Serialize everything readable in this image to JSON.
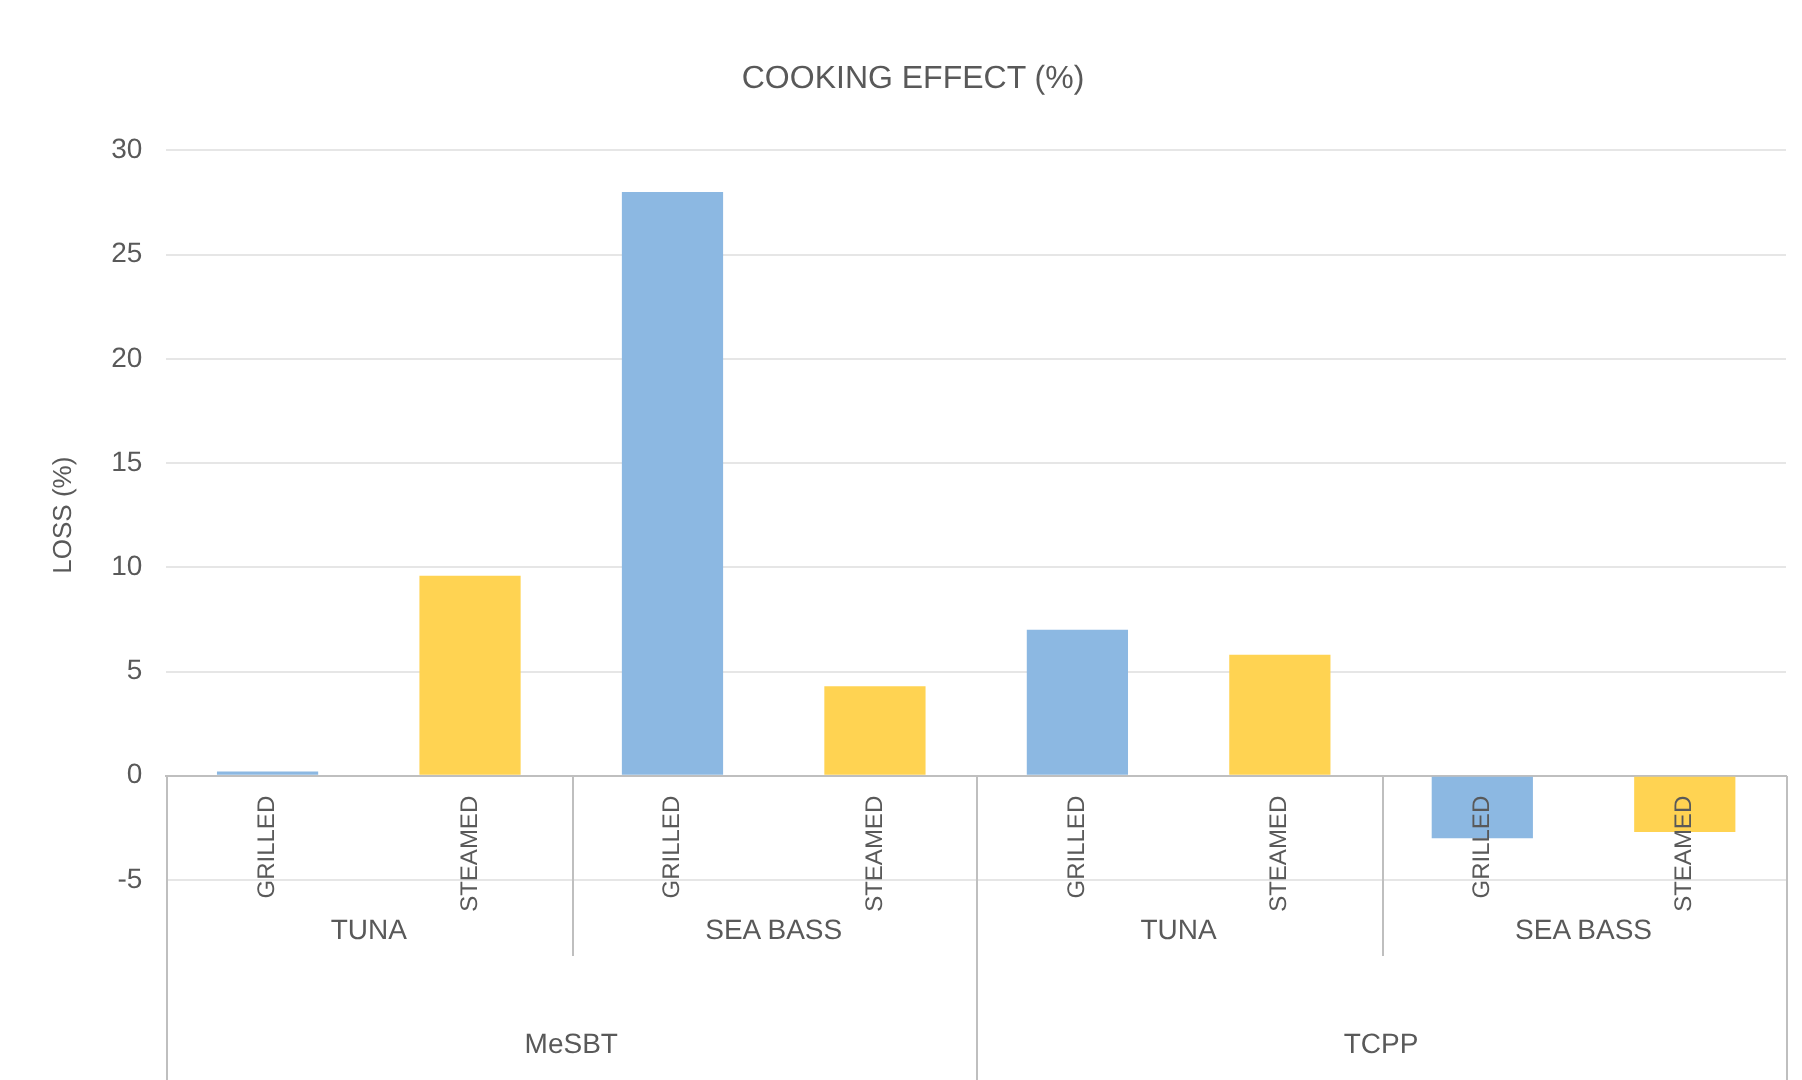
{
  "chart_data": {
    "type": "bar",
    "title": "COOKING EFFECT (%)",
    "ylabel": "LOSS (%)",
    "categories": [
      "GRILLED",
      "STEAMED",
      "GRILLED",
      "STEAMED",
      "GRILLED",
      "STEAMED",
      "GRILLED",
      "STEAMED"
    ],
    "values": [
      0.2,
      9.6,
      28,
      4.3,
      7,
      5.8,
      -3,
      -2.7
    ],
    "colors": [
      "#8cb8e2",
      "#ffd352",
      "#8cb8e2",
      "#ffd352",
      "#8cb8e2",
      "#ffd352",
      "#8cb8e2",
      "#ffd352"
    ],
    "ylim": [
      -5,
      30
    ],
    "yticks": [
      -5,
      0,
      5,
      10,
      15,
      20,
      25,
      30
    ],
    "grid": "y",
    "legend": false,
    "annotations": [
      "TUNA",
      "SEA BASS",
      "TUNA",
      "SEA BASS",
      "MeSBT",
      "TCPP"
    ]
  }
}
